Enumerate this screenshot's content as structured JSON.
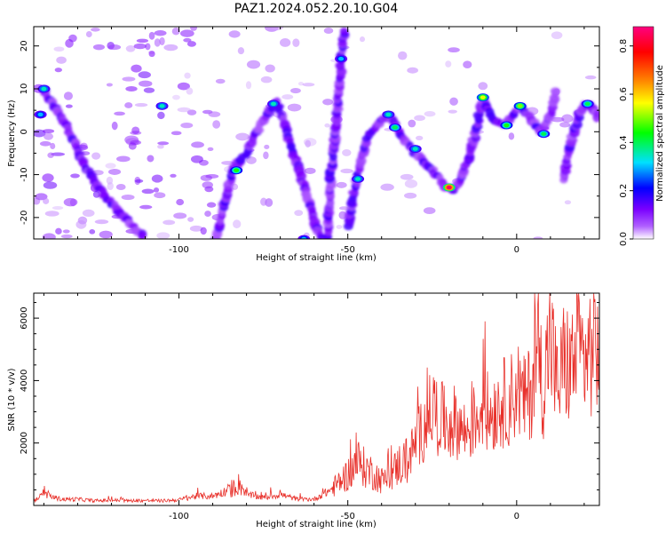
{
  "figure_title": "PAZ1.2024.052.20.10.G04",
  "chart_data": [
    {
      "type": "heatmap",
      "title": "PAZ1.2024.052.20.10.G04",
      "xlabel": "Height of straight line (km)",
      "ylabel": "Frequency (Hz)",
      "xlim": [
        -143,
        24.5
      ],
      "ylim": [
        -25,
        24.5
      ],
      "xticks": [
        -100,
        -50,
        0
      ],
      "yticks": [
        -20,
        -10,
        0,
        10,
        20
      ],
      "grid": false,
      "colorbar": {
        "label": "Normalized spectral amplitude",
        "range": [
          0,
          0.88
        ],
        "ticks": [
          0.0,
          0.2,
          0.4,
          0.6,
          0.8
        ],
        "colormap": [
          "#ffffff",
          "#7a00ff",
          "#0000ff",
          "#00e0ff",
          "#00ff00",
          "#ffff00",
          "#ff8000",
          "#ff0000",
          "#ff0080"
        ]
      },
      "ridges": [
        {
          "name": "left-ridge",
          "points": [
            [
              -140,
              9.5
            ],
            [
              -133,
              1
            ],
            [
              -128,
              -8
            ],
            [
              -122,
              -15
            ],
            [
              -116,
              -20
            ],
            [
              -110,
              -25
            ]
          ]
        },
        {
          "name": "rising-ridge-1",
          "points": [
            [
              -89,
              -25
            ],
            [
              -87,
              -18
            ],
            [
              -84,
              -9
            ],
            [
              -80,
              -5
            ],
            [
              -77,
              0
            ],
            [
              -74,
              4
            ],
            [
              -71,
              7
            ]
          ]
        },
        {
          "name": "falling-ridge-1",
          "points": [
            [
              -71,
              7
            ],
            [
              -68,
              0
            ],
            [
              -65,
              -8
            ],
            [
              -62,
              -15
            ],
            [
              -60,
              -21
            ],
            [
              -58,
              -25
            ]
          ]
        },
        {
          "name": "steep-ridge",
          "points": [
            [
              -56,
              -25
            ],
            [
              -55,
              -10
            ],
            [
              -53,
              5
            ],
            [
              -52,
              17
            ],
            [
              -51,
              24
            ]
          ]
        },
        {
          "name": "rising-ridge-2",
          "points": [
            [
              -50,
              -22
            ],
            [
              -48,
              -14
            ],
            [
              -46,
              -6
            ],
            [
              -44,
              -1
            ],
            [
              -40,
              2.5
            ],
            [
              -37,
              4
            ]
          ]
        },
        {
          "name": "falling-ridge-2",
          "points": [
            [
              -37,
              3
            ],
            [
              -33,
              -2
            ],
            [
              -29,
              -6
            ],
            [
              -25,
              -9
            ],
            [
              -21,
              -13
            ],
            [
              -18,
              -13.5
            ]
          ]
        },
        {
          "name": "zigzag-right",
          "points": [
            [
              -18,
              -13
            ],
            [
              -15,
              -8
            ],
            [
              -12,
              0
            ],
            [
              -10,
              8
            ],
            [
              -7,
              3
            ],
            [
              -4,
              1.5
            ],
            [
              -1,
              4
            ],
            [
              1,
              6
            ],
            [
              4,
              3
            ],
            [
              7,
              0
            ],
            [
              10,
              4
            ],
            [
              12,
              10
            ]
          ]
        },
        {
          "name": "final-ridge",
          "points": [
            [
              14,
              -11
            ],
            [
              16,
              -3
            ],
            [
              18,
              3
            ],
            [
              20,
              6.5
            ],
            [
              22,
              6
            ],
            [
              24.5,
              3
            ]
          ]
        }
      ],
      "hotspots": [
        {
          "x": -20,
          "y": -13,
          "value": 0.85
        },
        {
          "x": -10,
          "y": 8,
          "value": 0.55
        },
        {
          "x": 1,
          "y": 6,
          "value": 0.5
        },
        {
          "x": -3,
          "y": 1.5,
          "value": 0.45
        },
        {
          "x": 8,
          "y": -0.5,
          "value": 0.4
        },
        {
          "x": -38,
          "y": 4,
          "value": 0.35
        },
        {
          "x": -36,
          "y": 1,
          "value": 0.4
        },
        {
          "x": -30,
          "y": -4,
          "value": 0.35
        },
        {
          "x": -83,
          "y": -9,
          "value": 0.45
        },
        {
          "x": -72,
          "y": 6.5,
          "value": 0.35
        },
        {
          "x": -140,
          "y": 10,
          "value": 0.35
        },
        {
          "x": -141,
          "y": 4,
          "value": 0.3
        },
        {
          "x": -105,
          "y": 6,
          "value": 0.35
        },
        {
          "x": 21,
          "y": 6.5,
          "value": 0.4
        },
        {
          "x": -47,
          "y": -11,
          "value": 0.35
        },
        {
          "x": -52,
          "y": 17,
          "value": 0.3
        },
        {
          "x": -63,
          "y": -25,
          "value": 0.3
        }
      ]
    },
    {
      "type": "line",
      "xlabel": "Height of straight line (km)",
      "ylabel": "SNR (10 * v/v)",
      "xlim": [
        -143,
        24.5
      ],
      "ylim": [
        0,
        6800
      ],
      "xticks": [
        -100,
        -50,
        0
      ],
      "yticks": [
        2000,
        4000,
        6000
      ],
      "grid": false,
      "color": "#e8302a",
      "x": [
        -143,
        -140,
        -135,
        -130,
        -125,
        -120,
        -115,
        -110,
        -105,
        -100,
        -95,
        -90,
        -85,
        -82,
        -80,
        -75,
        -70,
        -65,
        -60,
        -55,
        -52,
        -50,
        -47,
        -45,
        -42,
        -40,
        -37,
        -35,
        -32,
        -30,
        -28,
        -26,
        -25,
        -23,
        -20,
        -18,
        -15,
        -12,
        -10,
        -8,
        -5,
        -3,
        -1,
        0,
        2,
        4,
        6,
        8,
        10,
        12,
        14,
        16,
        18,
        20,
        22,
        24.5
      ],
      "y": [
        150,
        350,
        200,
        200,
        150,
        170,
        150,
        160,
        150,
        180,
        300,
        300,
        500,
        700,
        350,
        250,
        350,
        200,
        200,
        500,
        800,
        1000,
        1400,
        1200,
        1000,
        800,
        1000,
        1300,
        1500,
        2000,
        2400,
        2800,
        3200,
        2800,
        2600,
        2700,
        2300,
        2800,
        3200,
        2900,
        3300,
        3300,
        3500,
        3900,
        3300,
        3600,
        5000,
        3800,
        5500,
        3700,
        4600,
        4400,
        4900,
        4700,
        5000,
        5200
      ]
    }
  ]
}
